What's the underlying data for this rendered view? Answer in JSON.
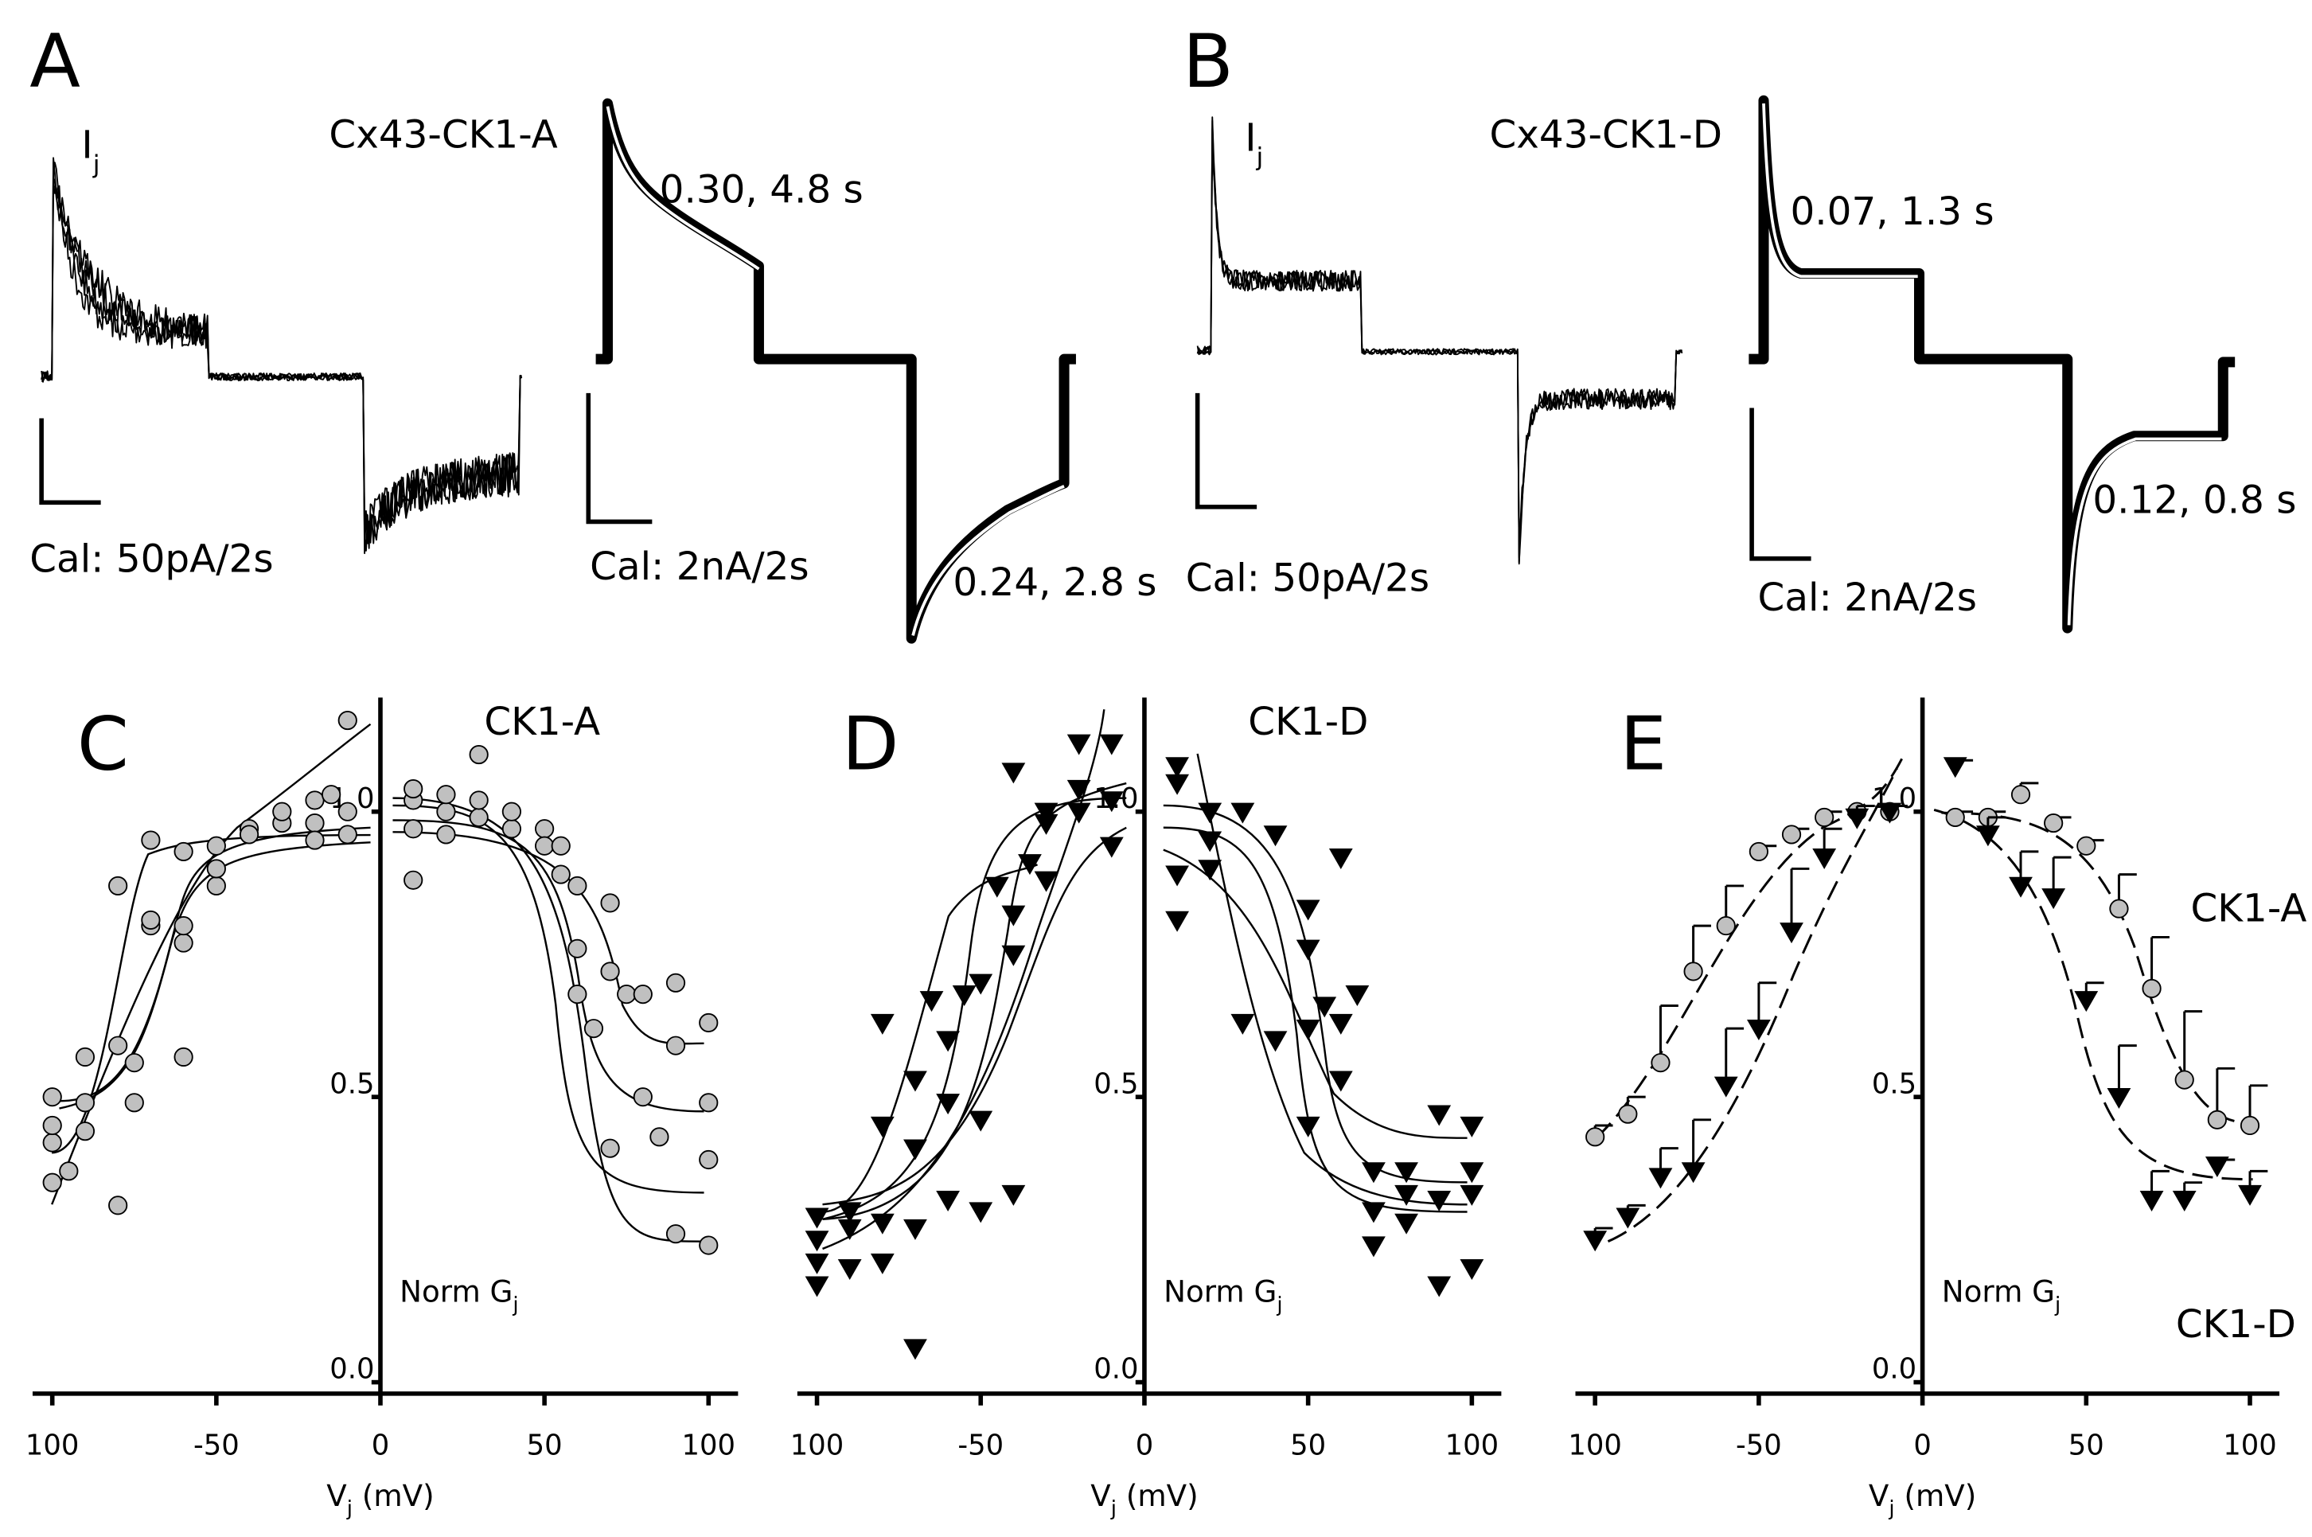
{
  "traces": [
    {
      "letter": "A",
      "current_label": {
        "main": "I",
        "sub": "j"
      },
      "construct": "Cx43-CK1-A",
      "fit_top": "0.30, 4.8 s",
      "fit_bottom": "0.24, 2.8 s",
      "cal_left": "Cal: 50pA/2s",
      "cal_right": "Cal: 2nA/2s"
    },
    {
      "letter": "B",
      "current_label": {
        "main": "I",
        "sub": "j"
      },
      "construct": "Cx43-CK1-D",
      "fit_top": "0.07, 1.3 s",
      "fit_bottom": "0.12, 0.8 s",
      "cal_left": "Cal: 50pA/2s",
      "cal_right": "Cal: 2nA/2s"
    }
  ],
  "chart_data": [
    {
      "type": "scatter",
      "letter": "C",
      "title": "CK1-A",
      "ylabel": {
        "main": "Norm G",
        "sub": "j"
      },
      "xlabel": {
        "main": "V",
        "sub": "j",
        "rest": " (mV)"
      },
      "xlim": [
        -106,
        109
      ],
      "ylim": [
        -0.02,
        1.2
      ],
      "xticks": [
        {
          "value": -100,
          "label": "100"
        },
        -50,
        0,
        50,
        100
      ],
      "yticks": [
        {
          "value": 0,
          "label": "0.0"
        },
        0.5,
        {
          "value": 1,
          "label": "1.0"
        }
      ],
      "series": [
        {
          "color": "#c0c0c0",
          "marker": "circle",
          "x": [
            -100,
            -100,
            -100,
            -100,
            -95,
            -90,
            -90,
            -90,
            -80,
            -80,
            -80,
            -75,
            -75,
            -70,
            -70,
            -70,
            -60,
            -60,
            -60,
            -60,
            -50,
            -50,
            -50,
            -40,
            -40,
            -30,
            -30,
            -20,
            -20,
            -20,
            -10,
            -10,
            -10,
            -15,
            10,
            10,
            10,
            10,
            20,
            20,
            20,
            30,
            30,
            30,
            40,
            40,
            50,
            50,
            55,
            55,
            60,
            60,
            60,
            65,
            70,
            70,
            70,
            75,
            80,
            80,
            85,
            90,
            90,
            90,
            100,
            100,
            100,
            100
          ],
          "values": [
            0.35,
            0.42,
            0.45,
            0.5,
            0.37,
            0.44,
            0.49,
            0.57,
            0.31,
            0.59,
            0.87,
            0.49,
            0.56,
            0.8,
            0.81,
            0.95,
            0.57,
            0.77,
            0.8,
            0.93,
            0.87,
            0.9,
            0.94,
            0.97,
            0.96,
            0.98,
            1.0,
            0.98,
            1.02,
            0.95,
            1.0,
            0.96,
            1.16,
            1.03,
            0.88,
            0.97,
            1.02,
            1.04,
            0.96,
            1.0,
            1.03,
            0.99,
            1.02,
            1.1,
            0.97,
            1.0,
            0.97,
            0.94,
            0.94,
            0.89,
            0.87,
            0.76,
            0.68,
            0.62,
            0.84,
            0.72,
            0.41,
            0.68,
            0.5,
            0.68,
            0.43,
            0.7,
            0.59,
            0.26,
            0.39,
            0.49,
            0.63,
            0.24
          ]
        }
      ]
    },
    {
      "type": "scatter",
      "letter": "D",
      "title": "CK1-D",
      "ylabel": {
        "main": "Norm G",
        "sub": "j"
      },
      "xlabel": {
        "main": "V",
        "sub": "j",
        "rest": " (mV)"
      },
      "xlim": [
        -106,
        109
      ],
      "ylim": [
        -0.02,
        1.2
      ],
      "xticks": [
        {
          "value": -100,
          "label": "100"
        },
        -50,
        0,
        50,
        100
      ],
      "yticks": [
        {
          "value": 0,
          "label": "0.0"
        },
        0.5,
        {
          "value": 1,
          "label": "1.0"
        }
      ],
      "series": [
        {
          "color": "#000000",
          "marker": "triangle",
          "x": [
            -100,
            -100,
            -100,
            -100,
            -90,
            -90,
            -90,
            -80,
            -80,
            -80,
            -80,
            -70,
            -70,
            -70,
            -70,
            -65,
            -60,
            -60,
            -60,
            -55,
            -50,
            -50,
            -50,
            -45,
            -40,
            -40,
            -40,
            -40,
            -35,
            -30,
            -30,
            -30,
            -20,
            -20,
            -20,
            -10,
            -10,
            -10,
            10,
            10,
            10,
            10,
            20,
            20,
            20,
            30,
            30,
            40,
            40,
            50,
            50,
            50,
            50,
            55,
            60,
            60,
            60,
            65,
            70,
            70,
            70,
            80,
            80,
            80,
            90,
            90,
            90,
            100,
            100,
            100,
            100
          ],
          "values": [
            0.17,
            0.21,
            0.25,
            0.29,
            0.2,
            0.27,
            0.3,
            0.21,
            0.28,
            0.45,
            0.63,
            0.06,
            0.27,
            0.41,
            0.53,
            0.67,
            0.32,
            0.49,
            0.6,
            0.68,
            0.3,
            0.46,
            0.7,
            0.87,
            0.33,
            0.75,
            0.82,
            1.07,
            0.91,
            0.98,
            1.0,
            0.88,
            1.0,
            1.04,
            1.12,
            0.94,
            1.02,
            1.12,
            0.81,
            0.89,
            1.05,
            1.08,
            0.95,
            1.0,
            0.9,
            0.63,
            1.0,
            0.6,
            0.96,
            0.62,
            0.76,
            0.83,
            0.45,
            0.66,
            0.92,
            0.63,
            0.53,
            0.68,
            0.37,
            0.3,
            0.24,
            0.28,
            0.33,
            0.37,
            0.17,
            0.32,
            0.47,
            0.2,
            0.33,
            0.37,
            0.45
          ]
        }
      ]
    },
    {
      "type": "errorbar",
      "letter": "E",
      "ylabel": {
        "main": "Norm G",
        "sub": "j"
      },
      "xlabel": {
        "main": "V",
        "sub": "j",
        "rest": " (mV)"
      },
      "xlim": [
        -106,
        109
      ],
      "ylim": [
        -0.02,
        1.2
      ],
      "xticks": [
        {
          "value": -100,
          "label": "100"
        },
        -50,
        0,
        50,
        100
      ],
      "yticks": [
        {
          "value": 0,
          "label": "0.0"
        },
        0.5,
        {
          "value": 1,
          "label": "1.0"
        }
      ],
      "series": [
        {
          "name": "CK1-A",
          "color": "#c0c0c0",
          "marker": "circle",
          "x": [
            -100,
            -90,
            -80,
            -70,
            -60,
            -50,
            -40,
            -30,
            -20,
            -10,
            10,
            20,
            30,
            40,
            50,
            60,
            70,
            80,
            90,
            100
          ],
          "values": [
            0.43,
            0.47,
            0.56,
            0.72,
            0.8,
            0.93,
            0.96,
            0.99,
            1.0,
            1.0,
            0.99,
            0.99,
            1.03,
            0.98,
            0.94,
            0.83,
            0.69,
            0.53,
            0.46,
            0.45
          ],
          "errors": [
            0.02,
            0.03,
            0.1,
            0.08,
            0.07,
            0.01,
            0.01,
            0.01,
            0.01,
            0.01,
            0.01,
            0.01,
            0.02,
            0.01,
            0.01,
            0.06,
            0.09,
            0.12,
            0.09,
            0.07
          ]
        },
        {
          "name": "CK1-D",
          "color": "#000000",
          "marker": "triangle",
          "x": [
            -100,
            -90,
            -80,
            -70,
            -60,
            -50,
            -40,
            -30,
            -20,
            -10,
            10,
            20,
            30,
            40,
            50,
            60,
            70,
            80,
            90,
            100
          ],
          "values": [
            0.25,
            0.29,
            0.36,
            0.37,
            0.52,
            0.62,
            0.79,
            0.92,
            0.99,
            1.0,
            1.08,
            0.96,
            0.87,
            0.85,
            0.67,
            0.5,
            0.32,
            0.32,
            0.38,
            0.33
          ],
          "errors": [
            0.02,
            0.02,
            0.05,
            0.09,
            0.1,
            0.08,
            0.11,
            0.05,
            0.02,
            0.01,
            0.01,
            0.03,
            0.06,
            0.07,
            0.03,
            0.09,
            0.05,
            0.03,
            0.01,
            0.04
          ]
        }
      ]
    }
  ]
}
